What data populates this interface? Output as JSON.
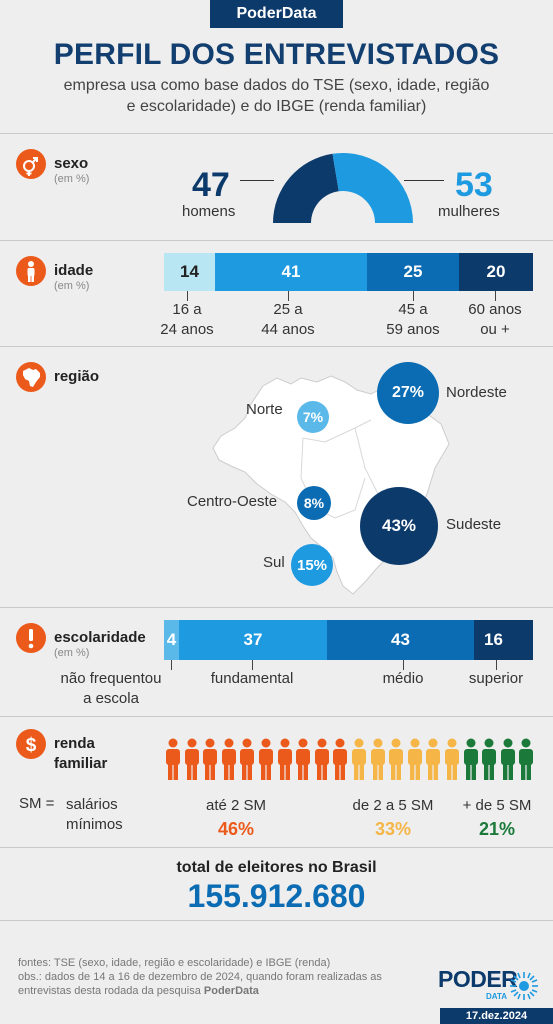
{
  "header": {
    "brand": "PoderData",
    "title": "PERFIL DOS ENTREVISTADOS",
    "subtitle_line1": "empresa usa como base dados do TSE (sexo, idade, região",
    "subtitle_line2": "e escolaridade) e do IBGE (renda familiar)"
  },
  "colors": {
    "orange": "#ec5a1b",
    "light_blue": "#b8e6f2",
    "sky_blue": "#1e9ae0",
    "mid_blue": "#0b6cb3",
    "navy": "#0c3a6b",
    "yellow": "#f5b547",
    "green": "#1b7a3a"
  },
  "sexo": {
    "title": "sexo",
    "unit": "(em %)",
    "men_value": "47",
    "men_label": "homens",
    "women_value": "53",
    "women_label": "mulheres",
    "icon": "gender-icon"
  },
  "idade": {
    "title": "idade",
    "unit": "(em %)",
    "icon": "person-icon",
    "segments": [
      {
        "value": "14",
        "label1": "16 a",
        "label2": "24 anos"
      },
      {
        "value": "41",
        "label1": "25 a",
        "label2": "44 anos"
      },
      {
        "value": "25",
        "label1": "45 a",
        "label2": "59 anos"
      },
      {
        "value": "20",
        "label1": "60 anos",
        "label2": "ou +"
      }
    ]
  },
  "regiao": {
    "title": "região",
    "icon": "brazil-map-icon",
    "regions": [
      {
        "name": "Norte",
        "value": "7%"
      },
      {
        "name": "Nordeste",
        "value": "27%"
      },
      {
        "name": "Centro-Oeste",
        "value": "8%"
      },
      {
        "name": "Sudeste",
        "value": "43%"
      },
      {
        "name": "Sul",
        "value": "15%"
      }
    ]
  },
  "escolaridade": {
    "title": "escolaridade",
    "unit": "(em %)",
    "icon": "exclamation-icon",
    "segments": [
      {
        "value": "4",
        "label1": "não frequentou",
        "label2": "a escola"
      },
      {
        "value": "37",
        "label1": "fundamental",
        "label2": ""
      },
      {
        "value": "43",
        "label1": "médio",
        "label2": ""
      },
      {
        "value": "16",
        "label1": "superior",
        "label2": ""
      }
    ]
  },
  "renda": {
    "title1": "renda",
    "title2": "familiar",
    "icon": "dollar-icon",
    "sm_key": "SM =",
    "sm_def1": "salários",
    "sm_def2": "mínimos",
    "groups": [
      {
        "label": "até 2 SM",
        "value": "46%",
        "count": 10
      },
      {
        "label": "de 2 a 5 SM",
        "value": "33%",
        "count": 6
      },
      {
        "label": "+ de 5 SM",
        "value": "21%",
        "count": 4
      }
    ]
  },
  "total": {
    "label": "total de eleitores no Brasil",
    "value": "155.912.680"
  },
  "footer": {
    "line1": "fontes: TSE (sexo, idade, região e escolaridade) e IBGE (renda)",
    "line2": "obs.: dados de 14 a 16 de dezembro de 2024, quando foram realizadas as",
    "line3_pre": "entrevistas desta rodada da pesquisa ",
    "line3_bold": "PoderData",
    "logo_main": "PODER",
    "logo_sub": "DATA",
    "date": "17.dez.2024"
  }
}
